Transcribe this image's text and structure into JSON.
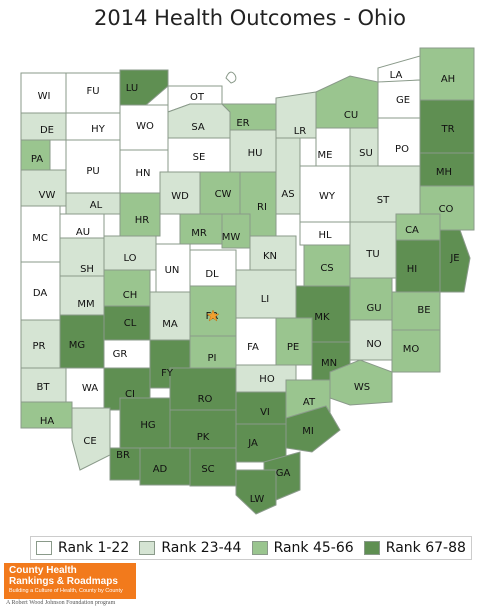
{
  "title": "2014 Health Outcomes - Ohio",
  "colors": {
    "rank_1_22": "#ffffff",
    "rank_23_44": "#d5e4d3",
    "rank_45_66": "#9ac58f",
    "rank_67_88": "#5f8f52",
    "border": "#8a9a8a",
    "label": "#111111"
  },
  "legend": [
    {
      "label": "Rank 1-22",
      "key": "rank_1_22"
    },
    {
      "label": "Rank 23-44",
      "key": "rank_23_44"
    },
    {
      "label": "Rank 45-66",
      "key": "rank_45_66"
    },
    {
      "label": "Rank 67-88",
      "key": "rank_67_88"
    }
  ],
  "logo": {
    "line1": "County Health",
    "line2": "Rankings & Roadmaps",
    "line3": "Building a Culture of Health, County by County"
  },
  "footer": "A Robert Wood Johnson Foundation program",
  "lake_label": "",
  "counties": [
    {
      "code": "WI",
      "rank": "rank_1_22"
    },
    {
      "code": "FU",
      "rank": "rank_1_22"
    },
    {
      "code": "LU",
      "rank": "rank_67_88"
    },
    {
      "code": "OT",
      "rank": "rank_1_22"
    },
    {
      "code": "LA",
      "rank": "rank_1_22"
    },
    {
      "code": "AH",
      "rank": "rank_45_66"
    },
    {
      "code": "GE",
      "rank": "rank_1_22"
    },
    {
      "code": "DE",
      "rank": "rank_23_44"
    },
    {
      "code": "HY",
      "rank": "rank_1_22"
    },
    {
      "code": "WO",
      "rank": "rank_1_22"
    },
    {
      "code": "SA",
      "rank": "rank_23_44"
    },
    {
      "code": "ER",
      "rank": "rank_45_66"
    },
    {
      "code": "LR",
      "rank": "rank_23_44"
    },
    {
      "code": "CU",
      "rank": "rank_45_66"
    },
    {
      "code": "TR",
      "rank": "rank_67_88"
    },
    {
      "code": "PA",
      "rank": "rank_45_66"
    },
    {
      "code": "PU",
      "rank": "rank_1_22"
    },
    {
      "code": "HN",
      "rank": "rank_1_22"
    },
    {
      "code": "SE",
      "rank": "rank_1_22"
    },
    {
      "code": "HU",
      "rank": "rank_23_44"
    },
    {
      "code": "ME",
      "rank": "rank_1_22"
    },
    {
      "code": "SU",
      "rank": "rank_23_44"
    },
    {
      "code": "PO",
      "rank": "rank_1_22"
    },
    {
      "code": "MH",
      "rank": "rank_67_88"
    },
    {
      "code": "VW",
      "rank": "rank_23_44"
    },
    {
      "code": "AL",
      "rank": "rank_23_44"
    },
    {
      "code": "WD",
      "rank": "rank_23_44"
    },
    {
      "code": "CW",
      "rank": "rank_45_66"
    },
    {
      "code": "RI",
      "rank": "rank_45_66"
    },
    {
      "code": "AS",
      "rank": "rank_23_44"
    },
    {
      "code": "WY",
      "rank": "rank_1_22"
    },
    {
      "code": "ST",
      "rank": "rank_23_44"
    },
    {
      "code": "CO",
      "rank": "rank_45_66"
    },
    {
      "code": "HR",
      "rank": "rank_45_66"
    },
    {
      "code": "MR",
      "rank": "rank_45_66"
    },
    {
      "code": "MW",
      "rank": "rank_45_66"
    },
    {
      "code": "HL",
      "rank": "rank_1_22"
    },
    {
      "code": "CA",
      "rank": "rank_45_66"
    },
    {
      "code": "MC",
      "rank": "rank_1_22"
    },
    {
      "code": "AU",
      "rank": "rank_1_22"
    },
    {
      "code": "LO",
      "rank": "rank_23_44"
    },
    {
      "code": "KN",
      "rank": "rank_23_44"
    },
    {
      "code": "TU",
      "rank": "rank_23_44"
    },
    {
      "code": "JE",
      "rank": "rank_67_88"
    },
    {
      "code": "SH",
      "rank": "rank_23_44"
    },
    {
      "code": "UN",
      "rank": "rank_1_22"
    },
    {
      "code": "DL",
      "rank": "rank_1_22"
    },
    {
      "code": "CS",
      "rank": "rank_45_66"
    },
    {
      "code": "HI",
      "rank": "rank_67_88"
    },
    {
      "code": "DA",
      "rank": "rank_1_22"
    },
    {
      "code": "MM",
      "rank": "rank_23_44"
    },
    {
      "code": "CH",
      "rank": "rank_45_66"
    },
    {
      "code": "LI",
      "rank": "rank_23_44"
    },
    {
      "code": "GU",
      "rank": "rank_45_66"
    },
    {
      "code": "BE",
      "rank": "rank_45_66"
    },
    {
      "code": "CL",
      "rank": "rank_67_88"
    },
    {
      "code": "MA",
      "rank": "rank_23_44"
    },
    {
      "code": "FR",
      "rank": "rank_45_66"
    },
    {
      "code": "MK",
      "rank": "rank_67_88"
    },
    {
      "code": "PR",
      "rank": "rank_23_44"
    },
    {
      "code": "MG",
      "rank": "rank_67_88"
    },
    {
      "code": "GR",
      "rank": "rank_1_22"
    },
    {
      "code": "PE",
      "rank": "rank_45_66"
    },
    {
      "code": "NO",
      "rank": "rank_23_44"
    },
    {
      "code": "MO",
      "rank": "rank_45_66"
    },
    {
      "code": "FA",
      "rank": "rank_1_22"
    },
    {
      "code": "PI",
      "rank": "rank_45_66"
    },
    {
      "code": "MN",
      "rank": "rank_67_88"
    },
    {
      "code": "FY",
      "rank": "rank_67_88"
    },
    {
      "code": "BT",
      "rank": "rank_23_44"
    },
    {
      "code": "WA",
      "rank": "rank_1_22"
    },
    {
      "code": "HO",
      "rank": "rank_23_44"
    },
    {
      "code": "WS",
      "rank": "rank_45_66"
    },
    {
      "code": "CI",
      "rank": "rank_67_88"
    },
    {
      "code": "RO",
      "rank": "rank_67_88"
    },
    {
      "code": "HA",
      "rank": "rank_45_66"
    },
    {
      "code": "AT",
      "rank": "rank_45_66"
    },
    {
      "code": "VI",
      "rank": "rank_67_88"
    },
    {
      "code": "HG",
      "rank": "rank_67_88"
    },
    {
      "code": "CE",
      "rank": "rank_23_44"
    },
    {
      "code": "PK",
      "rank": "rank_67_88"
    },
    {
      "code": "MI",
      "rank": "rank_67_88"
    },
    {
      "code": "JA",
      "rank": "rank_67_88"
    },
    {
      "code": "BR",
      "rank": "rank_67_88"
    },
    {
      "code": "AD",
      "rank": "rank_67_88"
    },
    {
      "code": "SC",
      "rank": "rank_67_88"
    },
    {
      "code": "GA",
      "rank": "rank_67_88"
    },
    {
      "code": "LW",
      "rank": "rank_67_88"
    }
  ]
}
